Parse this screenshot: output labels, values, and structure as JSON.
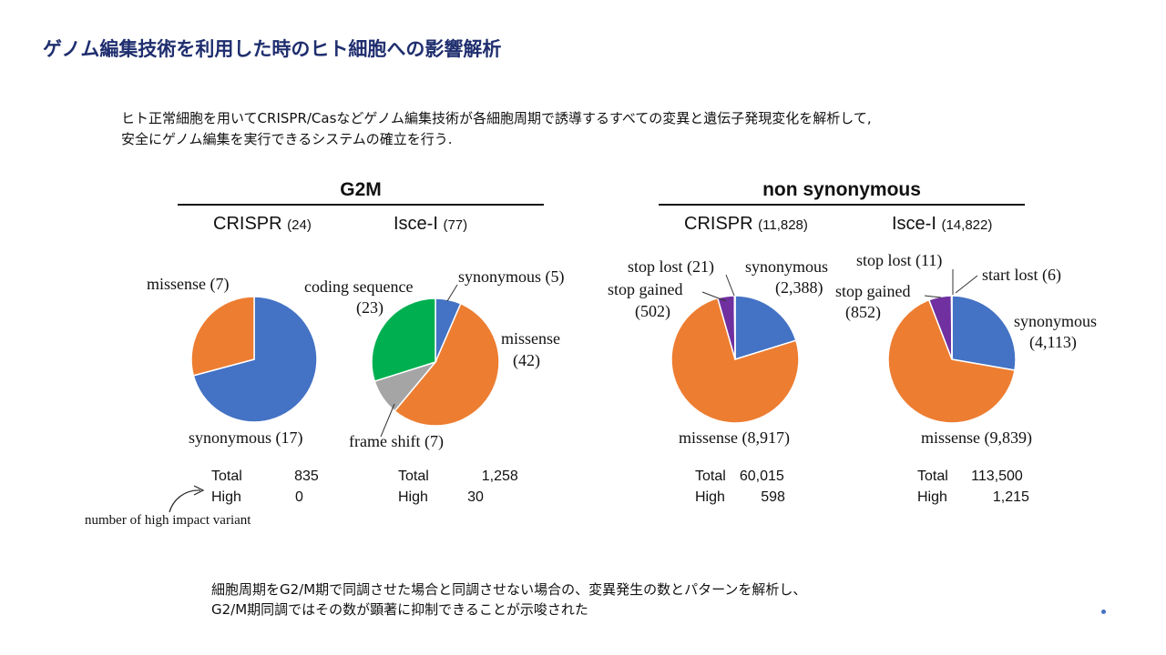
{
  "title": "ゲノム編集技術を利用した時のヒト細胞への影響解析",
  "intro": {
    "line1": "ヒト正常細胞を用いてCRISPR/Casなどゲノム編集技術が各細胞周期で誘導するすべての変異と遺伝子発現変化を解析して,",
    "line2": "安全にゲノム編集を実行できるシステムの確立を行う."
  },
  "groups": {
    "g2m": {
      "title": "G2M"
    },
    "nonsyn": {
      "title": "non synonymous"
    }
  },
  "panels": {
    "p1": {
      "name": "CRISPR",
      "count": "(24)",
      "labels": {
        "missense": "missense (7)",
        "synonymous": "synonymous (17)"
      },
      "stats": {
        "total_label": "Total",
        "total": "835",
        "high_label": "High",
        "high": "0"
      }
    },
    "p2": {
      "name": "Isce-I",
      "count": "(77)",
      "labels": {
        "coding1": "coding sequence",
        "coding2": "(23)",
        "synonymous": "synonymous (5)",
        "missense1": "missense",
        "missense2": "(42)",
        "frameshift": "frame shift  (7)"
      },
      "stats": {
        "total_label": "Total",
        "total": "1,258",
        "high_label": "High",
        "high": "30"
      }
    },
    "p3": {
      "name": "CRISPR",
      "count": "(11,828)",
      "labels": {
        "stoplost": "stop lost (21)",
        "stopgained1": "stop gained",
        "stopgained2": "(502)",
        "synonymous1": "synonymous",
        "synonymous2": "(2,388)",
        "missense": "missense (8,917)"
      },
      "stats": {
        "total_label": "Total",
        "total": "60,015",
        "high_label": "High",
        "high": "598"
      }
    },
    "p4": {
      "name": "Isce-I",
      "count": "(14,822)",
      "labels": {
        "stoplost": "stop lost (11)",
        "startlost": "start lost (6)",
        "stopgained1": "stop gained",
        "stopgained2": "(852)",
        "synonymous1": "synonymous",
        "synonymous2": "(4,113)",
        "missense": "missense (9,839)"
      },
      "stats": {
        "total_label": "Total",
        "total": "113,500",
        "high_label": "High",
        "high": "1,215"
      }
    }
  },
  "note": "number of high impact variant",
  "conclusion": {
    "line1": "細胞周期をG2/M期で同調させた場合と同調させない場合の、変異発生の数とパターンを解析し、",
    "line2": "G2/M期同調ではその数が顕著に抑制できることが示唆された"
  },
  "colors": {
    "blue": "#4472c4",
    "orange": "#ed7d31",
    "green": "#00b050",
    "gray": "#a5a5a5",
    "purple": "#7030a0",
    "title": "#1f2e6e"
  },
  "chart_data": [
    {
      "type": "pie",
      "title": "CRISPR (24)",
      "group": "G2M",
      "series": [
        {
          "name": "synonymous",
          "value": 17
        },
        {
          "name": "missense",
          "value": 7
        }
      ]
    },
    {
      "type": "pie",
      "title": "Isce-I (77)",
      "group": "G2M",
      "series": [
        {
          "name": "synonymous",
          "value": 5
        },
        {
          "name": "missense",
          "value": 42
        },
        {
          "name": "frame shift",
          "value": 7
        },
        {
          "name": "coding sequence",
          "value": 23
        }
      ]
    },
    {
      "type": "pie",
      "title": "CRISPR (11,828)",
      "group": "non synonymous",
      "series": [
        {
          "name": "synonymous",
          "value": 2388
        },
        {
          "name": "missense",
          "value": 8917
        },
        {
          "name": "stop gained",
          "value": 502
        },
        {
          "name": "stop lost",
          "value": 21
        }
      ]
    },
    {
      "type": "pie",
      "title": "Isce-I (14,822)",
      "group": "non synonymous",
      "series": [
        {
          "name": "synonymous",
          "value": 4113
        },
        {
          "name": "missense",
          "value": 9839
        },
        {
          "name": "stop gained",
          "value": 852
        },
        {
          "name": "stop lost",
          "value": 11
        },
        {
          "name": "start lost",
          "value": 6
        }
      ]
    }
  ]
}
